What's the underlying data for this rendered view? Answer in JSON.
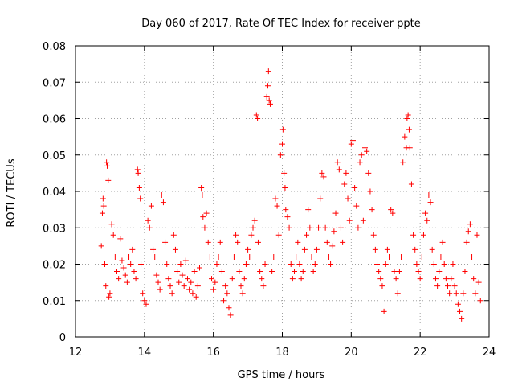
{
  "chart_data": {
    "type": "scatter",
    "title": "Day 060 of 2017, Rate Of TEC Index for receiver ppte",
    "xlabel": "GPS time / hours",
    "ylabel": "ROTI / TECUs",
    "xlim": [
      12,
      24
    ],
    "ylim": [
      0,
      0.08
    ],
    "x_ticks": [
      12,
      14,
      16,
      18,
      20,
      22,
      24
    ],
    "y_ticks": [
      0,
      0.01,
      0.02,
      0.03,
      0.04,
      0.05,
      0.06,
      0.07,
      0.08
    ],
    "x_tick_labels": [
      "12",
      "14",
      "16",
      "18",
      "20",
      "22",
      "24"
    ],
    "y_tick_labels": [
      "0",
      "0.01",
      "0.02",
      "0.03",
      "0.04",
      "0.05",
      "0.06",
      "0.07",
      "0.08"
    ],
    "grid": true,
    "marker": "+",
    "color": "#ff0000",
    "series": [
      {
        "name": "ROTI",
        "points": [
          [
            12.75,
            0.025
          ],
          [
            12.78,
            0.034
          ],
          [
            12.8,
            0.038
          ],
          [
            12.82,
            0.036
          ],
          [
            12.85,
            0.02
          ],
          [
            12.88,
            0.014
          ],
          [
            12.9,
            0.048
          ],
          [
            12.92,
            0.047
          ],
          [
            12.95,
            0.043
          ],
          [
            12.97,
            0.011
          ],
          [
            13.0,
            0.012
          ],
          [
            13.05,
            0.031
          ],
          [
            13.1,
            0.028
          ],
          [
            13.15,
            0.022
          ],
          [
            13.2,
            0.018
          ],
          [
            13.25,
            0.016
          ],
          [
            13.3,
            0.027
          ],
          [
            13.35,
            0.021
          ],
          [
            13.4,
            0.019
          ],
          [
            13.45,
            0.017
          ],
          [
            13.5,
            0.015
          ],
          [
            13.55,
            0.022
          ],
          [
            13.6,
            0.02
          ],
          [
            13.65,
            0.024
          ],
          [
            13.7,
            0.018
          ],
          [
            13.75,
            0.016
          ],
          [
            13.8,
            0.046
          ],
          [
            13.82,
            0.045
          ],
          [
            13.85,
            0.041
          ],
          [
            13.88,
            0.038
          ],
          [
            13.9,
            0.02
          ],
          [
            13.95,
            0.012
          ],
          [
            14.0,
            0.01
          ],
          [
            14.05,
            0.009
          ],
          [
            14.1,
            0.032
          ],
          [
            14.15,
            0.03
          ],
          [
            14.2,
            0.036
          ],
          [
            14.25,
            0.024
          ],
          [
            14.3,
            0.022
          ],
          [
            14.35,
            0.017
          ],
          [
            14.4,
            0.015
          ],
          [
            14.45,
            0.013
          ],
          [
            14.5,
            0.039
          ],
          [
            14.55,
            0.037
          ],
          [
            14.6,
            0.026
          ],
          [
            14.65,
            0.02
          ],
          [
            14.7,
            0.016
          ],
          [
            14.75,
            0.014
          ],
          [
            14.8,
            0.012
          ],
          [
            14.85,
            0.028
          ],
          [
            14.9,
            0.024
          ],
          [
            14.95,
            0.018
          ],
          [
            15.0,
            0.015
          ],
          [
            15.05,
            0.02
          ],
          [
            15.1,
            0.017
          ],
          [
            15.15,
            0.014
          ],
          [
            15.2,
            0.021
          ],
          [
            15.25,
            0.016
          ],
          [
            15.3,
            0.013
          ],
          [
            15.35,
            0.015
          ],
          [
            15.4,
            0.012
          ],
          [
            15.45,
            0.018
          ],
          [
            15.5,
            0.011
          ],
          [
            15.55,
            0.014
          ],
          [
            15.6,
            0.019
          ],
          [
            15.65,
            0.041
          ],
          [
            15.68,
            0.039
          ],
          [
            15.7,
            0.033
          ],
          [
            15.75,
            0.03
          ],
          [
            15.8,
            0.034
          ],
          [
            15.85,
            0.026
          ],
          [
            15.9,
            0.022
          ],
          [
            15.95,
            0.016
          ],
          [
            16.0,
            0.013
          ],
          [
            16.05,
            0.015
          ],
          [
            16.1,
            0.02
          ],
          [
            16.15,
            0.022
          ],
          [
            16.2,
            0.026
          ],
          [
            16.25,
            0.018
          ],
          [
            16.3,
            0.01
          ],
          [
            16.35,
            0.014
          ],
          [
            16.4,
            0.012
          ],
          [
            16.45,
            0.008
          ],
          [
            16.5,
            0.006
          ],
          [
            16.55,
            0.016
          ],
          [
            16.6,
            0.022
          ],
          [
            16.65,
            0.028
          ],
          [
            16.7,
            0.026
          ],
          [
            16.75,
            0.018
          ],
          [
            16.8,
            0.014
          ],
          [
            16.85,
            0.012
          ],
          [
            16.9,
            0.016
          ],
          [
            16.95,
            0.02
          ],
          [
            17.0,
            0.024
          ],
          [
            17.05,
            0.022
          ],
          [
            17.1,
            0.028
          ],
          [
            17.15,
            0.03
          ],
          [
            17.2,
            0.032
          ],
          [
            17.25,
            0.061
          ],
          [
            17.28,
            0.06
          ],
          [
            17.3,
            0.026
          ],
          [
            17.35,
            0.018
          ],
          [
            17.4,
            0.016
          ],
          [
            17.45,
            0.014
          ],
          [
            17.5,
            0.02
          ],
          [
            17.55,
            0.066
          ],
          [
            17.58,
            0.069
          ],
          [
            17.6,
            0.073
          ],
          [
            17.62,
            0.065
          ],
          [
            17.65,
            0.064
          ],
          [
            17.7,
            0.018
          ],
          [
            17.75,
            0.022
          ],
          [
            17.8,
            0.038
          ],
          [
            17.85,
            0.036
          ],
          [
            17.9,
            0.028
          ],
          [
            17.95,
            0.05
          ],
          [
            18.0,
            0.053
          ],
          [
            18.02,
            0.057
          ],
          [
            18.05,
            0.045
          ],
          [
            18.08,
            0.041
          ],
          [
            18.1,
            0.035
          ],
          [
            18.15,
            0.033
          ],
          [
            18.2,
            0.03
          ],
          [
            18.25,
            0.02
          ],
          [
            18.3,
            0.016
          ],
          [
            18.35,
            0.018
          ],
          [
            18.4,
            0.022
          ],
          [
            18.45,
            0.026
          ],
          [
            18.5,
            0.02
          ],
          [
            18.55,
            0.016
          ],
          [
            18.6,
            0.018
          ],
          [
            18.65,
            0.024
          ],
          [
            18.7,
            0.028
          ],
          [
            18.75,
            0.035
          ],
          [
            18.8,
            0.03
          ],
          [
            18.85,
            0.022
          ],
          [
            18.9,
            0.018
          ],
          [
            18.95,
            0.02
          ],
          [
            19.0,
            0.024
          ],
          [
            19.05,
            0.03
          ],
          [
            19.1,
            0.038
          ],
          [
            19.15,
            0.045
          ],
          [
            19.2,
            0.044
          ],
          [
            19.25,
            0.03
          ],
          [
            19.3,
            0.026
          ],
          [
            19.35,
            0.022
          ],
          [
            19.4,
            0.02
          ],
          [
            19.45,
            0.025
          ],
          [
            19.5,
            0.029
          ],
          [
            19.55,
            0.034
          ],
          [
            19.6,
            0.048
          ],
          [
            19.65,
            0.046
          ],
          [
            19.7,
            0.03
          ],
          [
            19.75,
            0.026
          ],
          [
            19.8,
            0.042
          ],
          [
            19.85,
            0.045
          ],
          [
            19.9,
            0.038
          ],
          [
            19.95,
            0.032
          ],
          [
            20.0,
            0.053
          ],
          [
            20.05,
            0.054
          ],
          [
            20.1,
            0.041
          ],
          [
            20.15,
            0.036
          ],
          [
            20.2,
            0.03
          ],
          [
            20.25,
            0.048
          ],
          [
            20.3,
            0.05
          ],
          [
            20.35,
            0.032
          ],
          [
            20.4,
            0.052
          ],
          [
            20.45,
            0.051
          ],
          [
            20.5,
            0.045
          ],
          [
            20.55,
            0.04
          ],
          [
            20.6,
            0.035
          ],
          [
            20.65,
            0.028
          ],
          [
            20.7,
            0.024
          ],
          [
            20.75,
            0.02
          ],
          [
            20.8,
            0.018
          ],
          [
            20.85,
            0.016
          ],
          [
            20.9,
            0.014
          ],
          [
            20.95,
            0.007
          ],
          [
            21.0,
            0.02
          ],
          [
            21.05,
            0.024
          ],
          [
            21.1,
            0.022
          ],
          [
            21.15,
            0.035
          ],
          [
            21.2,
            0.034
          ],
          [
            21.25,
            0.018
          ],
          [
            21.3,
            0.016
          ],
          [
            21.35,
            0.012
          ],
          [
            21.4,
            0.018
          ],
          [
            21.45,
            0.022
          ],
          [
            21.5,
            0.048
          ],
          [
            21.55,
            0.055
          ],
          [
            21.6,
            0.052
          ],
          [
            21.62,
            0.06
          ],
          [
            21.65,
            0.061
          ],
          [
            21.68,
            0.057
          ],
          [
            21.7,
            0.052
          ],
          [
            21.75,
            0.042
          ],
          [
            21.8,
            0.028
          ],
          [
            21.85,
            0.024
          ],
          [
            21.9,
            0.02
          ],
          [
            21.95,
            0.018
          ],
          [
            22.0,
            0.016
          ],
          [
            22.05,
            0.022
          ],
          [
            22.1,
            0.028
          ],
          [
            22.15,
            0.034
          ],
          [
            22.2,
            0.032
          ],
          [
            22.25,
            0.039
          ],
          [
            22.3,
            0.037
          ],
          [
            22.35,
            0.024
          ],
          [
            22.4,
            0.02
          ],
          [
            22.45,
            0.016
          ],
          [
            22.5,
            0.014
          ],
          [
            22.55,
            0.018
          ],
          [
            22.6,
            0.022
          ],
          [
            22.65,
            0.026
          ],
          [
            22.7,
            0.02
          ],
          [
            22.75,
            0.016
          ],
          [
            22.8,
            0.014
          ],
          [
            22.85,
            0.012
          ],
          [
            22.9,
            0.016
          ],
          [
            22.95,
            0.02
          ],
          [
            23.0,
            0.014
          ],
          [
            23.05,
            0.012
          ],
          [
            23.1,
            0.009
          ],
          [
            23.15,
            0.007
          ],
          [
            23.2,
            0.005
          ],
          [
            23.25,
            0.012
          ],
          [
            23.3,
            0.018
          ],
          [
            23.35,
            0.026
          ],
          [
            23.4,
            0.029
          ],
          [
            23.45,
            0.031
          ],
          [
            23.5,
            0.022
          ],
          [
            23.55,
            0.016
          ],
          [
            23.6,
            0.012
          ],
          [
            23.65,
            0.028
          ],
          [
            23.7,
            0.015
          ],
          [
            23.75,
            0.01
          ]
        ]
      }
    ]
  }
}
